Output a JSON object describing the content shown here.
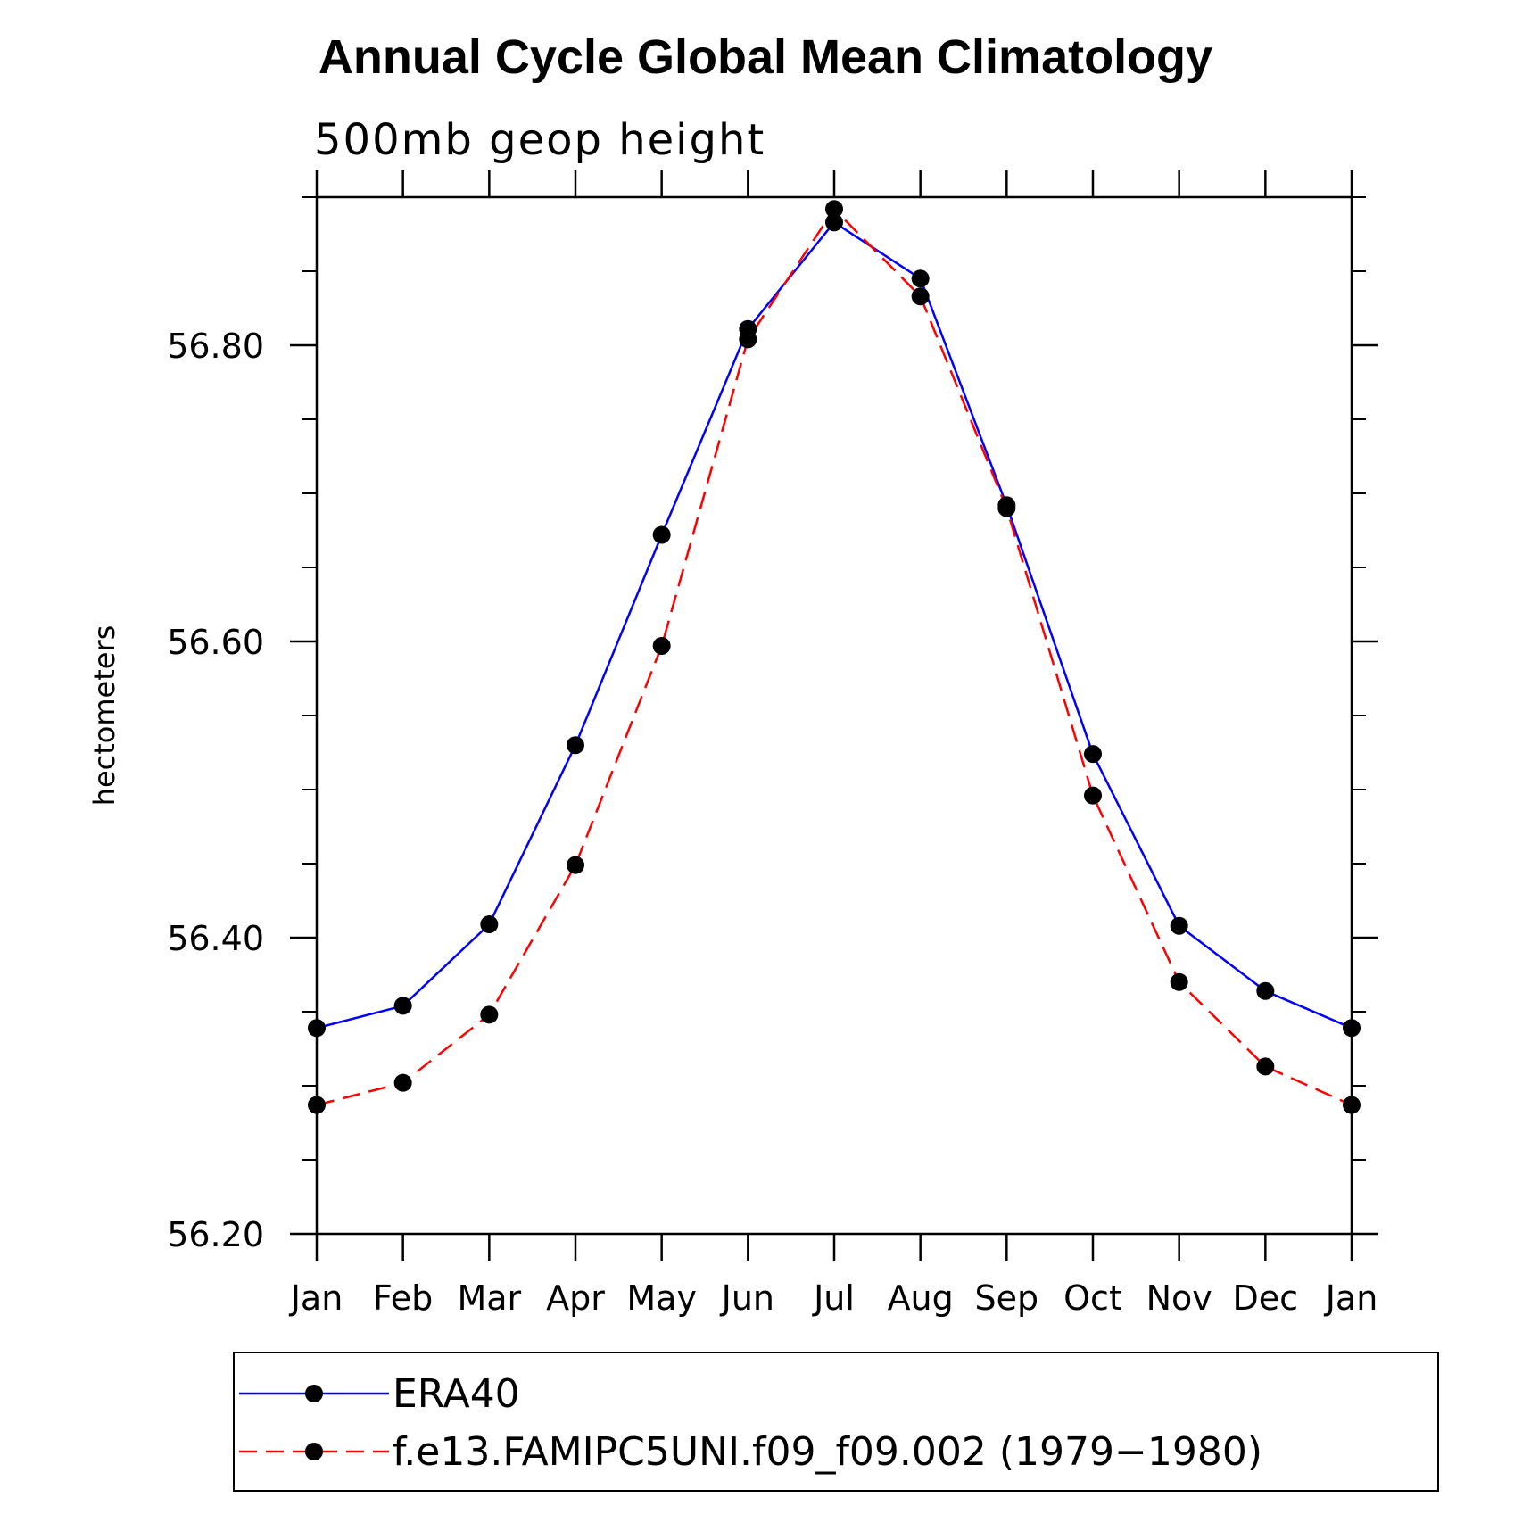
{
  "chart_data": {
    "type": "line",
    "title": "Annual Cycle Global Mean Climatology",
    "subtitle": "500mb geop height",
    "xlabel": "",
    "ylabel": "hectometers",
    "categories": [
      "Jan",
      "Feb",
      "Mar",
      "Apr",
      "May",
      "Jun",
      "Jul",
      "Aug",
      "Sep",
      "Oct",
      "Nov",
      "Dec",
      "Jan"
    ],
    "ylim": [
      56.2,
      56.9
    ],
    "yticks": [
      "56.20",
      "56.40",
      "56.60",
      "56.80"
    ],
    "ytick_values": [
      56.2,
      56.4,
      56.6,
      56.8
    ],
    "grid": false,
    "legend_position": "bottom",
    "series": [
      {
        "name": "ERA40",
        "color": "#0000ff",
        "dash": "solid",
        "values": [
          56.339,
          56.354,
          56.409,
          56.53,
          56.672,
          56.811,
          56.883,
          56.845,
          56.692,
          56.524,
          56.408,
          56.364,
          56.339
        ]
      },
      {
        "name": "f.e13.FAMIPC5UNI.f09_f09.002 (1979−1980)",
        "color": "#ff0000",
        "dash": "dashed",
        "values": [
          56.287,
          56.302,
          56.348,
          56.449,
          56.597,
          56.804,
          56.892,
          56.833,
          56.69,
          56.496,
          56.37,
          56.313,
          56.287
        ]
      }
    ]
  }
}
